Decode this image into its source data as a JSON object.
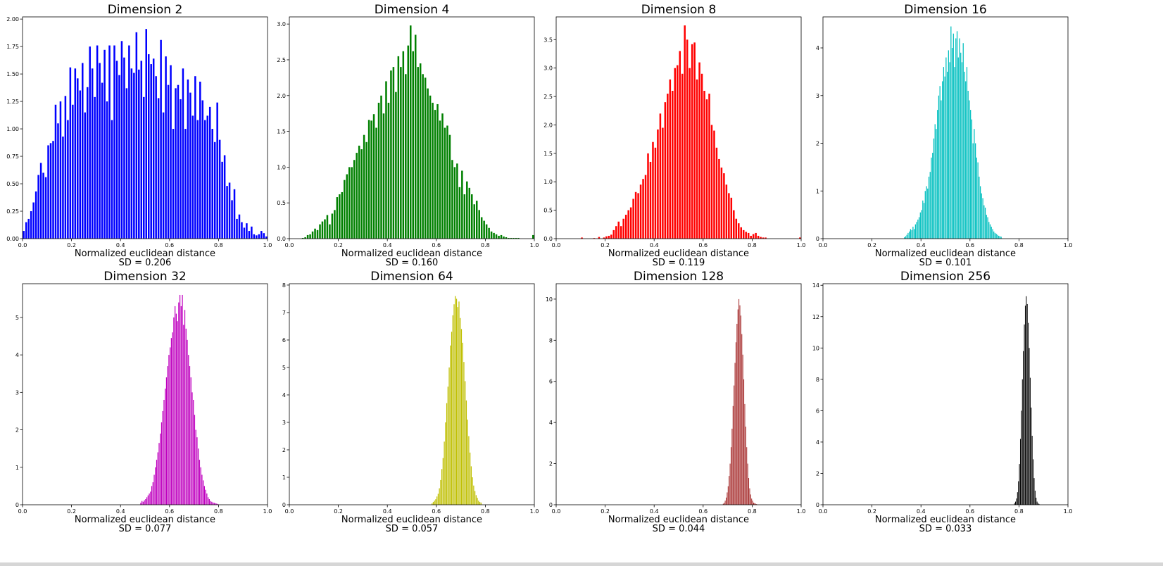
{
  "chart_data": [
    {
      "type": "bar",
      "title": "Dimension 2",
      "xlabel": "Normalized euclidean distance",
      "annotation": "SD = 0.206",
      "color": "#0000ff",
      "xlim": [
        0,
        1
      ],
      "ylim": [
        0,
        2.02
      ],
      "xticks": [
        0,
        0.2,
        0.4,
        0.6,
        0.8,
        1
      ],
      "xtick_labels": [
        "0.0",
        "0.2",
        "0.4",
        "0.6",
        "0.8",
        "1.0"
      ],
      "yticks": [
        0,
        0.25,
        0.5,
        0.75,
        1,
        1.25,
        1.5,
        1.75,
        2
      ],
      "ytick_labels": [
        "0.00",
        "0.25",
        "0.50",
        "0.75",
        "1.00",
        "1.25",
        "1.50",
        "1.75",
        "2.00"
      ],
      "bin_start": 0,
      "bin_width": 0.01,
      "values": [
        0.07,
        0.15,
        0.18,
        0.25,
        0.33,
        0.43,
        0.58,
        0.69,
        0.6,
        0.56,
        0.85,
        0.87,
        0.89,
        1.22,
        1.05,
        1.25,
        0.93,
        1.3,
        1.08,
        1.56,
        1.22,
        1.55,
        1.46,
        1.35,
        1.6,
        1.15,
        1.38,
        1.75,
        1.55,
        1.29,
        1.76,
        1.6,
        1.42,
        1.72,
        1.25,
        1.76,
        1.08,
        1.76,
        1.62,
        1.49,
        1.8,
        1.65,
        1.37,
        1.76,
        1.55,
        1.51,
        1.88,
        1.54,
        1.62,
        1.29,
        1.91,
        1.68,
        1.59,
        1.64,
        1.48,
        1.28,
        1.81,
        1.15,
        1.66,
        1.4,
        1.58,
        1.0,
        1.37,
        1.4,
        1.27,
        1.55,
        1.0,
        1.45,
        1.33,
        1.12,
        1.48,
        1.08,
        1.43,
        1.26,
        1.08,
        1.12,
        1.2,
        1.0,
        0.88,
        1.24,
        0.9,
        0.7,
        0.76,
        0.48,
        0.51,
        0.35,
        0.45,
        0.18,
        0.22,
        0.15,
        0.1,
        0.14,
        0.07,
        0.11,
        0.04,
        0.03,
        0.04,
        0.07,
        0.05,
        0.02
      ]
    },
    {
      "type": "bar",
      "title": "Dimension 4",
      "xlabel": "Normalized euclidean distance",
      "annotation": "SD = 0.160",
      "color": "#008000",
      "xlim": [
        0,
        1
      ],
      "ylim": [
        0,
        3.1
      ],
      "xticks": [
        0,
        0.2,
        0.4,
        0.6,
        0.8,
        1
      ],
      "xtick_labels": [
        "0.0",
        "0.2",
        "0.4",
        "0.6",
        "0.8",
        "1.0"
      ],
      "yticks": [
        0,
        0.5,
        1,
        1.5,
        2,
        2.5,
        3
      ],
      "ytick_labels": [
        "0.0",
        "0.5",
        "1.0",
        "1.5",
        "2.0",
        "2.5",
        "3.0"
      ],
      "bin_start": 0,
      "bin_width": 0.01,
      "values": [
        0,
        0,
        0,
        0,
        0,
        0.01,
        0.02,
        0.05,
        0.06,
        0.1,
        0.14,
        0.12,
        0.2,
        0.24,
        0.27,
        0.33,
        0.2,
        0.35,
        0.4,
        0.58,
        0.62,
        0.65,
        0.82,
        0.9,
        1.0,
        1.0,
        1.1,
        1.2,
        1.3,
        1.25,
        1.45,
        1.35,
        1.66,
        1.65,
        1.74,
        1.55,
        1.9,
        2.0,
        1.75,
        2.2,
        1.9,
        2.35,
        2.4,
        2.05,
        2.55,
        2.4,
        2.62,
        2.3,
        2.7,
        2.98,
        2.62,
        2.85,
        2.4,
        2.45,
        2.3,
        2.25,
        2.1,
        2.0,
        1.9,
        1.8,
        1.88,
        1.65,
        1.75,
        1.55,
        1.58,
        1.45,
        1.1,
        1.0,
        1.05,
        0.72,
        0.95,
        0.62,
        0.8,
        0.71,
        0.62,
        0.48,
        0.53,
        0.4,
        0.3,
        0.25,
        0.2,
        0.15,
        0.1,
        0.08,
        0.06,
        0.04,
        0.05,
        0.03,
        0.02,
        0.01,
        0.01,
        0.01,
        0.01,
        0.01,
        0,
        0,
        0,
        0,
        0,
        0.05
      ]
    },
    {
      "type": "bar",
      "title": "Dimension 8",
      "xlabel": "Normalized euclidean distance",
      "annotation": "SD = 0.119",
      "color": "#ff0000",
      "xlim": [
        0,
        1
      ],
      "ylim": [
        0,
        3.9
      ],
      "xticks": [
        0,
        0.2,
        0.4,
        0.6,
        0.8,
        1
      ],
      "xtick_labels": [
        "0.0",
        "0.2",
        "0.4",
        "0.6",
        "0.8",
        "1.0"
      ],
      "yticks": [
        0,
        0.5,
        1,
        1.5,
        2,
        2.5,
        3,
        3.5
      ],
      "ytick_labels": [
        "0.0",
        "0.5",
        "1.0",
        "1.5",
        "2.0",
        "2.5",
        "3.0",
        "3.5"
      ],
      "bin_start": 0,
      "bin_width": 0.01,
      "values": [
        0,
        0,
        0,
        0,
        0,
        0,
        0,
        0,
        0,
        0,
        0.02,
        0,
        0,
        0,
        0,
        0.01,
        0,
        0.03,
        0,
        0.02,
        0.04,
        0.05,
        0.07,
        0.15,
        0.22,
        0.3,
        0.22,
        0.35,
        0.42,
        0.5,
        0.55,
        0.7,
        0.82,
        0.8,
        0.95,
        1.05,
        1.12,
        1.5,
        1.35,
        1.7,
        1.6,
        1.92,
        2.2,
        1.95,
        2.4,
        2.55,
        2.8,
        2.6,
        3.0,
        3.05,
        3.3,
        2.9,
        3.75,
        3.5,
        3.0,
        3.42,
        3.45,
        2.8,
        3.1,
        2.9,
        2.6,
        2.45,
        2.55,
        2.0,
        1.9,
        1.6,
        1.4,
        1.25,
        1.15,
        0.95,
        0.8,
        0.72,
        0.5,
        0.35,
        0.27,
        0.2,
        0.15,
        0.12,
        0.1,
        0.05,
        0.08,
        0.1,
        0.05,
        0.03,
        0.02,
        0.02,
        0,
        0,
        0,
        0,
        0,
        0,
        0,
        0,
        0,
        0,
        0,
        0,
        0,
        0.02
      ]
    },
    {
      "type": "bar",
      "title": "Dimension 16",
      "xlabel": "Normalized euclidean distance",
      "annotation": "SD = 0.101",
      "color": "#00bfbf",
      "xlim": [
        0,
        1
      ],
      "ylim": [
        0,
        4.65
      ],
      "xticks": [
        0,
        0.2,
        0.4,
        0.6,
        0.8,
        1
      ],
      "xtick_labels": [
        "0.0",
        "0.2",
        "0.4",
        "0.6",
        "0.8",
        "1.0"
      ],
      "yticks": [
        0,
        1,
        2,
        3,
        4
      ],
      "ytick_labels": [
        "0",
        "1",
        "2",
        "3",
        "4"
      ],
      "bin_start": 0.33,
      "bin_width": 0.005,
      "values": [
        0.03,
        0.05,
        0.08,
        0.12,
        0.15,
        0.2,
        0.18,
        0.25,
        0.2,
        0.3,
        0.35,
        0.4,
        0.45,
        0.55,
        0.6,
        0.8,
        0.75,
        1.0,
        1.1,
        1.05,
        1.3,
        1.4,
        1.7,
        1.8,
        2.1,
        2.4,
        2.3,
        2.7,
        3.0,
        3.2,
        2.9,
        3.3,
        3.6,
        3.4,
        3.8,
        3.5,
        3.95,
        3.7,
        4.45,
        4.0,
        4.3,
        3.6,
        4.2,
        4.35,
        3.8,
        4.2,
        3.9,
        3.7,
        4.1,
        3.5,
        3.3,
        3.6,
        3.1,
        2.9,
        2.7,
        2.5,
        2.0,
        2.3,
        2.0,
        1.7,
        1.6,
        1.3,
        1.1,
        0.95,
        0.85,
        0.7,
        0.65,
        0.5,
        0.45,
        0.35,
        0.3,
        0.25,
        0.2,
        0.15,
        0.12,
        0.1,
        0.08,
        0.06,
        0.05,
        0.04
      ]
    },
    {
      "type": "bar",
      "title": "Dimension 32",
      "xlabel": "Normalized euclidean distance",
      "annotation": "SD = 0.077",
      "color": "#bf00bf",
      "xlim": [
        0,
        1
      ],
      "ylim": [
        0,
        5.9
      ],
      "xticks": [
        0,
        0.2,
        0.4,
        0.6,
        0.8,
        1
      ],
      "xtick_labels": [
        "0.0",
        "0.2",
        "0.4",
        "0.6",
        "0.8",
        "1.0"
      ],
      "yticks": [
        0,
        1,
        2,
        3,
        4,
        5
      ],
      "ytick_labels": [
        "0",
        "1",
        "2",
        "3",
        "4",
        "5"
      ],
      "bin_start": 0.48,
      "bin_width": 0.005,
      "values": [
        0.05,
        0.1,
        0.08,
        0.12,
        0.15,
        0.2,
        0.25,
        0.3,
        0.35,
        0.5,
        0.6,
        0.8,
        1.0,
        1.2,
        1.4,
        1.65,
        1.9,
        2.2,
        2.5,
        2.8,
        3.1,
        3.4,
        3.7,
        4.0,
        4.2,
        4.45,
        4.6,
        5.0,
        5.3,
        5.1,
        4.9,
        5.4,
        5.6,
        5.3,
        5.6,
        4.8,
        5.2,
        4.7,
        4.4,
        4.0,
        3.7,
        3.4,
        3.0,
        2.8,
        2.4,
        2.0,
        1.8,
        1.5,
        1.2,
        1.0,
        0.8,
        0.65,
        0.5,
        0.4,
        0.3,
        0.2,
        0.15,
        0.1,
        0.08,
        0.06,
        0.05,
        0.04,
        0.03,
        0.02
      ]
    },
    {
      "type": "bar",
      "title": "Dimension 64",
      "xlabel": "Normalized euclidean distance",
      "annotation": "SD = 0.057",
      "color": "#bfbf00",
      "xlim": [
        0,
        1
      ],
      "ylim": [
        0,
        8.05
      ],
      "xticks": [
        0,
        0.2,
        0.4,
        0.6,
        0.8,
        1
      ],
      "xtick_labels": [
        "0.0",
        "0.2",
        "0.4",
        "0.6",
        "0.8",
        "1.0"
      ],
      "yticks": [
        0,
        1,
        2,
        3,
        4,
        5,
        6,
        7,
        8
      ],
      "ytick_labels": [
        "0",
        "1",
        "2",
        "3",
        "4",
        "5",
        "6",
        "7",
        "8"
      ],
      "bin_start": 0.58,
      "bin_width": 0.005,
      "values": [
        0.05,
        0.1,
        0.15,
        0.2,
        0.3,
        0.4,
        0.6,
        0.9,
        1.3,
        1.7,
        2.3,
        3.0,
        3.7,
        4.3,
        5.0,
        5.8,
        6.3,
        6.9,
        7.3,
        7.6,
        7.5,
        7.2,
        7.4,
        6.8,
        6.4,
        5.9,
        5.2,
        4.5,
        3.8,
        3.1,
        2.5,
        1.9,
        1.4,
        1.0,
        0.7,
        0.5,
        0.35,
        0.25,
        0.15,
        0.1,
        0.08
      ]
    },
    {
      "type": "bar",
      "title": "Dimension 128",
      "xlabel": "Normalized euclidean distance",
      "annotation": "SD = 0.044",
      "color": "#a52a2a",
      "xlim": [
        0,
        1
      ],
      "ylim": [
        0,
        10.75
      ],
      "xticks": [
        0,
        0.2,
        0.4,
        0.6,
        0.8,
        1
      ],
      "xtick_labels": [
        "0.0",
        "0.2",
        "0.4",
        "0.6",
        "0.8",
        "1.0"
      ],
      "yticks": [
        0,
        2,
        4,
        6,
        8,
        10
      ],
      "ytick_labels": [
        "0",
        "2",
        "4",
        "6",
        "8",
        "10"
      ],
      "bin_start": 0.68,
      "bin_width": 0.004,
      "values": [
        0.05,
        0.1,
        0.2,
        0.35,
        0.6,
        0.9,
        1.4,
        2.0,
        2.8,
        3.7,
        4.8,
        5.8,
        6.9,
        7.9,
        8.8,
        9.5,
        10.0,
        9.7,
        9.2,
        8.3,
        7.3,
        6.1,
        4.9,
        3.8,
        2.8,
        2.0,
        1.3,
        0.8,
        0.5,
        0.3,
        0.2,
        0.1,
        0.08,
        0.05,
        0.03
      ]
    },
    {
      "type": "bar",
      "title": "Dimension 256",
      "xlabel": "Normalized euclidean distance",
      "annotation": "SD = 0.033",
      "color": "#000000",
      "xlim": [
        0,
        1
      ],
      "ylim": [
        0,
        14.1
      ],
      "xticks": [
        0,
        0.2,
        0.4,
        0.6,
        0.8,
        1
      ],
      "xtick_labels": [
        "0.0",
        "0.2",
        "0.4",
        "0.6",
        "0.8",
        "1.0"
      ],
      "yticks": [
        0,
        2,
        4,
        6,
        8,
        10,
        12,
        14
      ],
      "ytick_labels": [
        "0",
        "2",
        "4",
        "6",
        "8",
        "10",
        "12",
        "14"
      ],
      "bin_start": 0.78,
      "bin_width": 0.004,
      "values": [
        0.1,
        0.2,
        0.4,
        0.8,
        1.5,
        2.6,
        4.2,
        6.0,
        8.0,
        9.8,
        11.5,
        12.7,
        13.3,
        12.8,
        11.6,
        10.0,
        8.1,
        6.2,
        4.4,
        2.9,
        1.7,
        0.9,
        0.45,
        0.2,
        0.1,
        0.05
      ]
    }
  ]
}
